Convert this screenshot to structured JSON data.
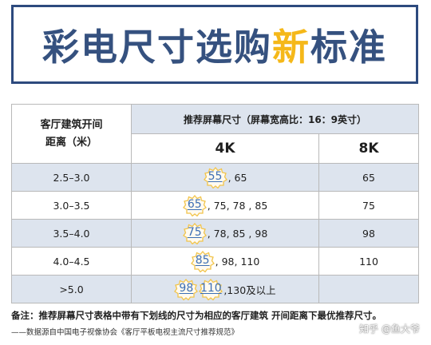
{
  "title_main": "彩电尺寸选购",
  "title_highlight": "新",
  "title_end": "标准",
  "colors": {
    "title": "#35517f",
    "highlight": "#f5b819",
    "shade": "#dde4ee",
    "badge": "#f2c44a",
    "rec_text": "#3c6fb5"
  },
  "table": {
    "header_distance": [
      "客厅建筑开间",
      "距离（米）"
    ],
    "header_recommend": "推荐屏幕尺寸（屏幕宽高比：16：9英寸）",
    "col_4k": "4K",
    "col_8k": "8K",
    "rows": [
      {
        "distance": "2.5–3.0",
        "rec": [
          "55"
        ],
        "others_4k": ", 65",
        "size_8k": "65"
      },
      {
        "distance": "3.0–3.5",
        "rec": [
          "65"
        ],
        "others_4k": ", 75, 78 , 85",
        "size_8k": "75"
      },
      {
        "distance": "3.5–4.0",
        "rec": [
          "75"
        ],
        "others_4k": ", 78, 85 , 98",
        "size_8k": "98"
      },
      {
        "distance": "4.0–4.5",
        "rec": [
          "85"
        ],
        "others_4k": ", 98, 110",
        "size_8k": "110"
      },
      {
        "distance": ">5.0",
        "rec": [
          "98",
          "110"
        ],
        "others_4k": ",130及以上",
        "size_8k": ""
      }
    ]
  },
  "note": "备注：推荐屏幕尺寸表格中带有下划线的尺寸为相应的客厅建筑 开间距离下最优推荐尺寸。",
  "source": "——数据源自中国电子视像协会《客厅平板电视主流尺寸推荐规范》",
  "watermark": "知乎 @鱼大爷"
}
